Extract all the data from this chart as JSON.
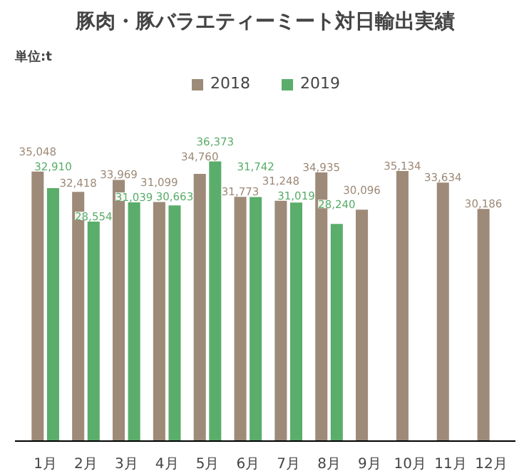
{
  "chart_data": {
    "type": "bar",
    "title": "豚肉・豚バラエティーミート対日輸出実績",
    "annotations": [
      "単位:t"
    ],
    "categories": [
      "1月",
      "2月",
      "3月",
      "4月",
      "5月",
      "6月",
      "7月",
      "8月",
      "9月",
      "10月",
      "11月",
      "12月"
    ],
    "series": [
      {
        "name": "2018",
        "color": "#9e8a78",
        "values": [
          35048,
          32418,
          33969,
          31099,
          34760,
          31773,
          31248,
          34935,
          30096,
          35134,
          33634,
          30186
        ],
        "value_labels": [
          "35,048",
          "32,418",
          "33,969",
          "31,099",
          "34,760",
          "31,773",
          "31,248",
          "34,935",
          "30,096",
          "35,134",
          "33,634",
          "30,186"
        ]
      },
      {
        "name": "2019",
        "color": "#5aad6a",
        "values": [
          32910,
          28554,
          31039,
          30663,
          36373,
          31742,
          31019,
          28240,
          null,
          null,
          null,
          null
        ],
        "value_labels": [
          "32,910",
          "28,554",
          "31,039",
          "30,663",
          "36,373",
          "31,742",
          "31,019",
          "28,240",
          null,
          null,
          null,
          null
        ]
      }
    ],
    "legend": "top"
  }
}
